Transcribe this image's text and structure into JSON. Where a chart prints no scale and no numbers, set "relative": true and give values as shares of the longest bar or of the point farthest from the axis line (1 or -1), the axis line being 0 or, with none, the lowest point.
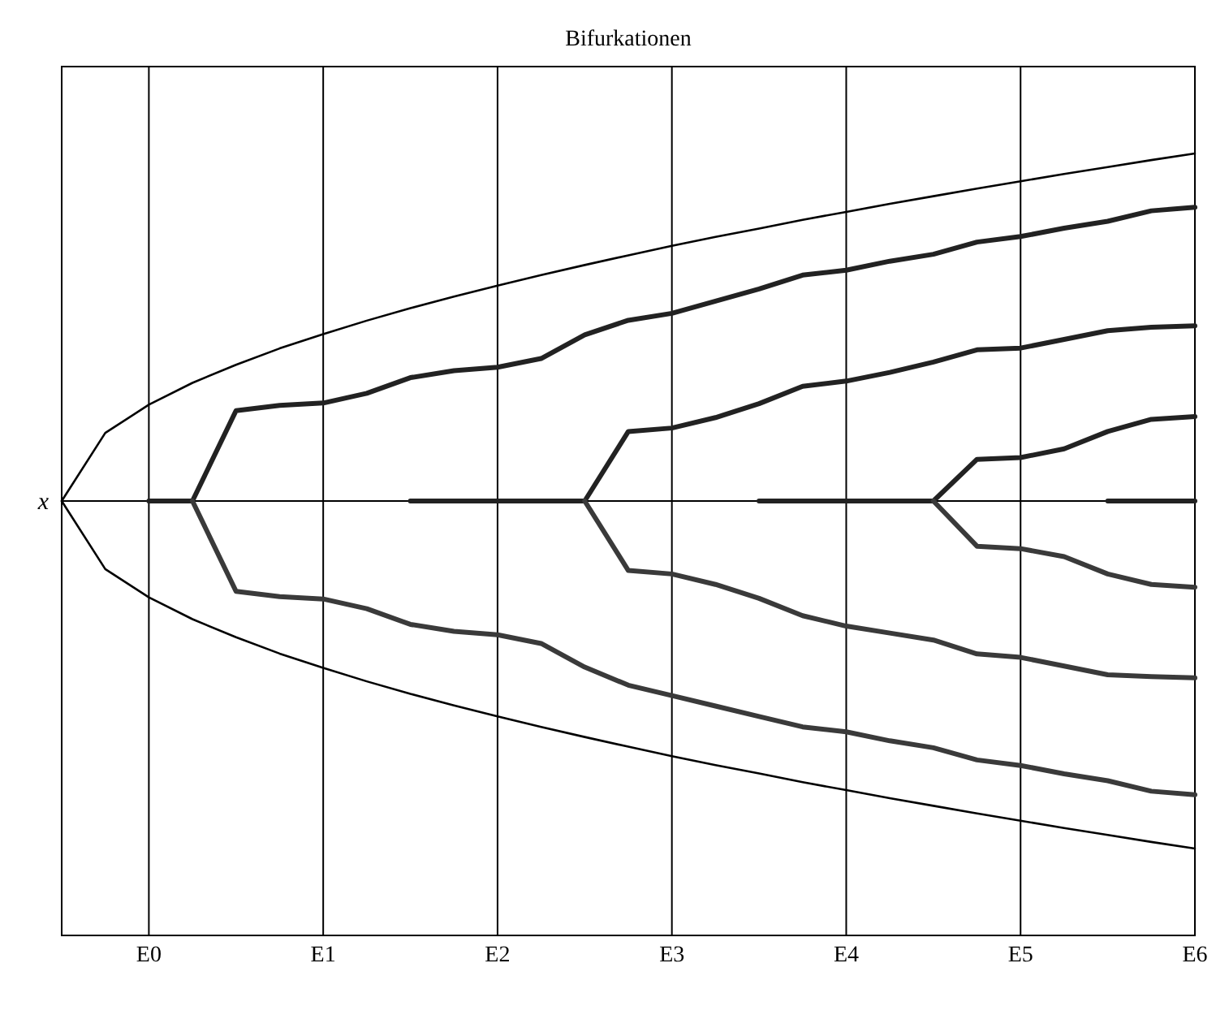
{
  "chart_data": {
    "type": "line",
    "title": "Bifurkationen",
    "ylabel": "x",
    "relative": true,
    "grid": "x",
    "categories": [
      null,
      null,
      "E0",
      null,
      null,
      null,
      "E1",
      null,
      null,
      null,
      "E2",
      null,
      null,
      null,
      "E3",
      null,
      null,
      null,
      "E4",
      null,
      null,
      null,
      "E5",
      null,
      null,
      null,
      "E6"
    ],
    "series": [
      {
        "color": "#000000",
        "values": [
          0,
          0.196,
          0.277,
          0.34,
          0.392,
          0.439,
          0.48,
          0.519,
          0.555,
          0.588,
          0.62,
          0.65,
          0.679,
          0.707,
          0.734,
          0.76,
          0.784,
          0.809,
          0.832,
          0.855,
          0.877,
          0.899,
          0.92,
          0.941,
          0.961,
          0.981,
          1
        ]
      },
      {
        "color": "#000000",
        "values": [
          0,
          -0.196,
          -0.277,
          -0.34,
          -0.392,
          -0.439,
          -0.48,
          -0.519,
          -0.555,
          -0.588,
          -0.62,
          -0.65,
          -0.679,
          -0.707,
          -0.734,
          -0.76,
          -0.784,
          -0.809,
          -0.832,
          -0.855,
          -0.877,
          -0.899,
          -0.92,
          -0.941,
          -0.961,
          -0.981,
          -1
        ]
      },
      {
        "color": "#222222",
        "values": [
          null,
          null,
          0,
          0,
          0.26,
          0.275,
          0.282,
          0.31,
          0.355,
          0.375,
          0.385,
          0.41,
          0.478,
          0.52,
          0.54,
          0.575,
          0.61,
          0.65,
          0.664,
          0.69,
          0.71,
          0.745,
          0.761,
          0.785,
          0.805,
          0.835,
          0.845
        ]
      },
      {
        "color": "#3a3a3a",
        "values": [
          null,
          null,
          null,
          0,
          -0.26,
          -0.275,
          -0.282,
          -0.31,
          -0.355,
          -0.375,
          -0.385,
          -0.41,
          -0.478,
          -0.53,
          -0.56,
          -0.59,
          -0.62,
          -0.65,
          -0.664,
          -0.69,
          -0.71,
          -0.745,
          -0.761,
          -0.785,
          -0.805,
          -0.835,
          -0.845
        ]
      },
      {
        "color": "#222222",
        "values": [
          null,
          null,
          null,
          null,
          null,
          null,
          null,
          null,
          0,
          0,
          0,
          0,
          0,
          0.2,
          0.21,
          0.24,
          0.28,
          0.33,
          0.345,
          0.37,
          0.4,
          0.435,
          0.44,
          0.465,
          0.49,
          0.5,
          0.504
        ]
      },
      {
        "color": "#3a3a3a",
        "values": [
          null,
          null,
          null,
          null,
          null,
          null,
          null,
          null,
          null,
          null,
          null,
          null,
          0,
          -0.2,
          -0.21,
          -0.24,
          -0.28,
          -0.33,
          -0.36,
          -0.38,
          -0.4,
          -0.44,
          -0.45,
          -0.475,
          -0.5,
          -0.505,
          -0.509
        ]
      },
      {
        "color": "#222222",
        "values": [
          null,
          null,
          null,
          null,
          null,
          null,
          null,
          null,
          null,
          null,
          null,
          null,
          null,
          null,
          null,
          null,
          0,
          0,
          0,
          0,
          0,
          0.12,
          0.125,
          0.15,
          0.2,
          0.235,
          0.243
        ]
      },
      {
        "color": "#3a3a3a",
        "values": [
          null,
          null,
          null,
          null,
          null,
          null,
          null,
          null,
          null,
          null,
          null,
          null,
          null,
          null,
          null,
          null,
          null,
          null,
          null,
          null,
          0,
          -0.13,
          -0.137,
          -0.16,
          -0.21,
          -0.24,
          -0.248
        ]
      },
      {
        "color": "#222222",
        "values": [
          null,
          null,
          null,
          null,
          null,
          null,
          null,
          null,
          null,
          null,
          null,
          null,
          null,
          null,
          null,
          null,
          null,
          null,
          null,
          null,
          null,
          null,
          null,
          null,
          0,
          0,
          0
        ]
      }
    ]
  }
}
